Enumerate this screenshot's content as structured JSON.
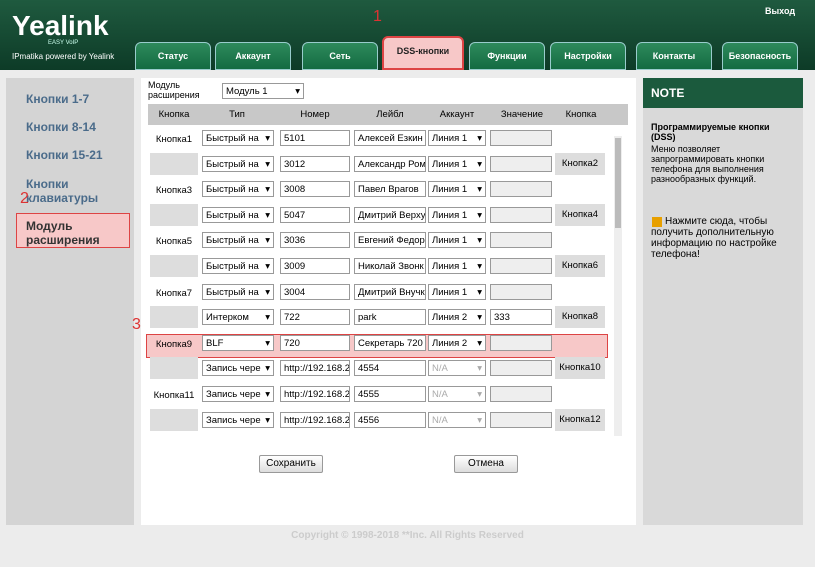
{
  "header": {
    "logo": "Yealink",
    "logo_sub": "EASY VoIP",
    "powered": "IPmatika powered by Yealink",
    "logout": "Выход"
  },
  "tabs": [
    "Статус",
    "Аккаунт",
    "Сеть",
    "DSS-кнопки",
    "Функции",
    "Настройки",
    "Контакты",
    "Безопасность"
  ],
  "annotations": [
    "1",
    "2",
    "3"
  ],
  "sidebar": [
    "Кнопки 1-7",
    "Кнопки 8-14",
    "Кнопки 15-21",
    "Кнопки клавиатуры",
    "Модуль расширения"
  ],
  "module": {
    "label": "Модуль расширения",
    "select": "Модуль 1"
  },
  "table": {
    "headers": [
      "Кнопка",
      "Тип",
      "Номер",
      "Лейбл",
      "Аккаунт",
      "Значение",
      "Кнопка"
    ],
    "rows": [
      {
        "key": "Кнопка1",
        "type": "Быстрый на",
        "number": "5101",
        "label": "Алексей Езкин",
        "account": "Линия 1"
      },
      {
        "type": "Быстрый на",
        "number": "3012",
        "label": "Александр Ром",
        "account": "Линия 1",
        "key2": "Кнопка2"
      },
      {
        "key": "Кнопка3",
        "type": "Быстрый на",
        "number": "3008",
        "label": "Павел Врагов",
        "account": "Линия 1"
      },
      {
        "type": "Быстрый на",
        "number": "5047",
        "label": "Дмитрий Верху",
        "account": "Линия 1",
        "key2": "Кнопка4"
      },
      {
        "key": "Кнопка5",
        "type": "Быстрый на",
        "number": "3036",
        "label": "Евгений Федор",
        "account": "Линия 1"
      },
      {
        "type": "Быстрый на",
        "number": "3009",
        "label": "Николай Звонк",
        "account": "Линия 1",
        "key2": "Кнопка6"
      },
      {
        "key": "Кнопка7",
        "type": "Быстрый на",
        "number": "3004",
        "label": "Дмитрий Внучк",
        "account": "Линия 1"
      },
      {
        "type": "Интерком",
        "number": "722",
        "label": "park",
        "account": "Линия 2",
        "value": "333",
        "key2": "Кнопка8"
      },
      {
        "key": "Кнопка9",
        "type": "BLF",
        "number": "720",
        "label": "Секретарь 720",
        "account": "Линия 2"
      },
      {
        "type": "Запись чере",
        "number": "http://192.168.2",
        "label": "4554",
        "account": "N/A",
        "key2": "Кнопка10"
      },
      {
        "key": "Кнопка11",
        "type": "Запись чере",
        "number": "http://192.168.2",
        "label": "4555",
        "account": "N/A"
      },
      {
        "type": "Запись чере",
        "number": "http://192.168.2",
        "label": "4556",
        "account": "N/A",
        "key2": "Кнопка12"
      }
    ]
  },
  "buttons": [
    "Сохранить",
    "Отмена"
  ],
  "note": {
    "title": "NOTE",
    "heading": "Программируемые кнопки (DSS)",
    "text": "Меню позволяет запрограммировать кнопки телефона для выполнения разнообразных функций.",
    "link": "Нажмите сюда, чтобы получить дополнительную информацию по настройке телефона!"
  },
  "footer": "Copyright © 1998-2018 **Inc. All Rights Reserved"
}
